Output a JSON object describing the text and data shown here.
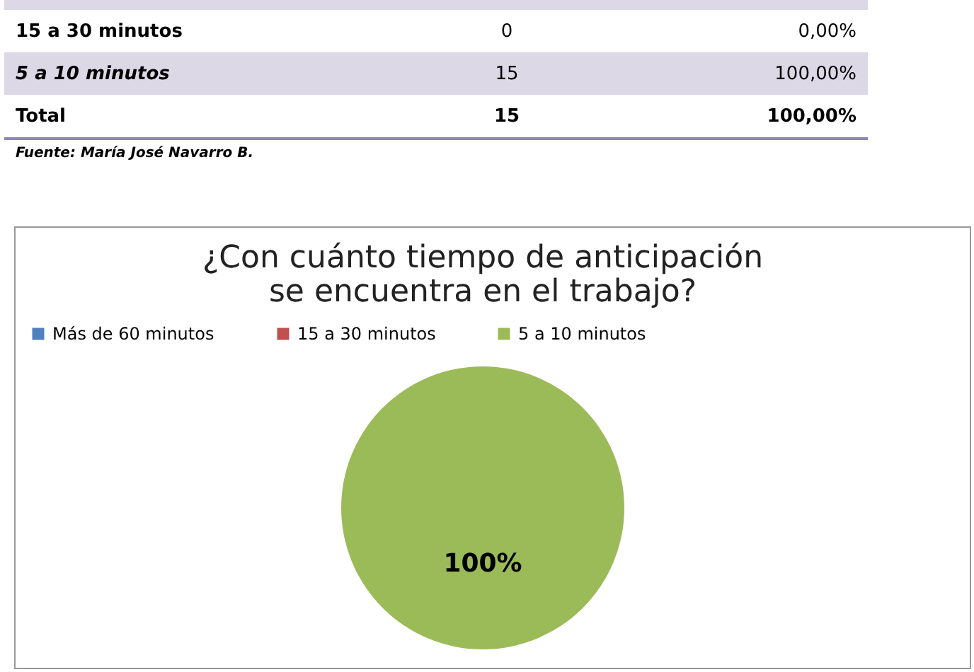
{
  "chart_data": [
    {
      "type": "other",
      "annotations": [
        "15 a 30 minutos",
        "0",
        "0,00%",
        "5  a 10 minutos",
        "15",
        "100,00%",
        "Total",
        "15",
        "100,00%",
        "Fuente: María José Navarro B."
      ]
    },
    {
      "type": "pie",
      "title": "¿Con cuánto tiempo de anticipación se encuentra en el trabajo?",
      "categories": [
        "Más de 60 minutos",
        "15 a 30 minutos",
        "5  a 10 minutos"
      ],
      "values": [
        0,
        0,
        100
      ],
      "colors": [
        "#4f81bd",
        "#c0504d",
        "#9bbb59"
      ],
      "value_labels": [
        null,
        null,
        "100%"
      ],
      "legend": "top"
    }
  ]
}
